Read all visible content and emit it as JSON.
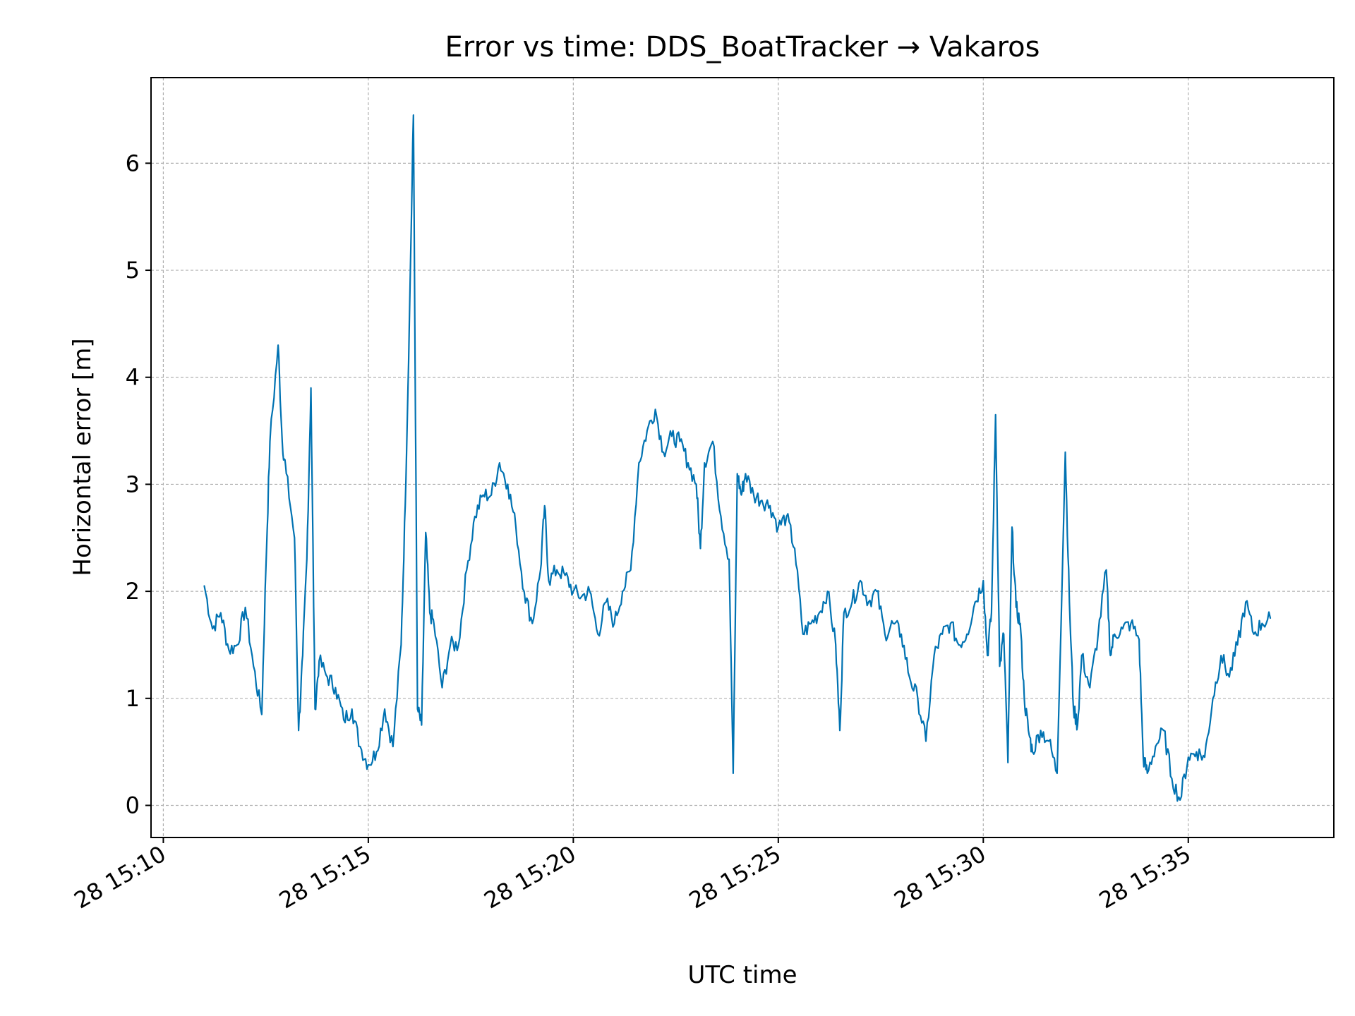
{
  "chart_data": {
    "type": "line",
    "title": "Error vs time: DDS_BoatTracker → Vakaros",
    "xlabel": "UTC time",
    "ylabel": "Horizontal error [m]",
    "grid": true,
    "xlim": [
      "28 15:09:42",
      "28 15:38:33"
    ],
    "ylim": [
      -0.3,
      6.8
    ],
    "x_ticks": [
      "28 15:10",
      "28 15:15",
      "28 15:20",
      "28 15:25",
      "28 15:30",
      "28 15:35"
    ],
    "y_ticks": [
      "0",
      "1",
      "2",
      "3",
      "4",
      "5",
      "6"
    ],
    "series": [
      {
        "color": "#0072b2",
        "x": [
          "28 15:11:00",
          "28 15:11:12",
          "28 15:11:24",
          "28 15:11:36",
          "28 15:11:48",
          "28 15:12:00",
          "28 15:12:12",
          "28 15:12:24",
          "28 15:12:30",
          "28 15:12:36",
          "28 15:12:48",
          "28 15:12:54",
          "28 15:13:00",
          "28 15:13:12",
          "28 15:13:18",
          "28 15:13:24",
          "28 15:13:30",
          "28 15:13:36",
          "28 15:13:42",
          "28 15:13:48",
          "28 15:14:00",
          "28 15:14:12",
          "28 15:14:24",
          "28 15:14:36",
          "28 15:14:48",
          "28 15:15:00",
          "28 15:15:12",
          "28 15:15:24",
          "28 15:15:36",
          "28 15:15:48",
          "28 15:15:54",
          "28 15:16:00",
          "28 15:16:06",
          "28 15:16:12",
          "28 15:16:18",
          "28 15:16:24",
          "28 15:16:30",
          "28 15:16:36",
          "28 15:16:48",
          "28 15:17:00",
          "28 15:17:12",
          "28 15:17:24",
          "28 15:17:36",
          "28 15:17:48",
          "28 15:18:00",
          "28 15:18:12",
          "28 15:18:24",
          "28 15:18:36",
          "28 15:18:48",
          "28 15:19:00",
          "28 15:19:12",
          "28 15:19:18",
          "28 15:19:24",
          "28 15:19:36",
          "28 15:19:48",
          "28 15:20:00",
          "28 15:20:12",
          "28 15:20:24",
          "28 15:20:36",
          "28 15:20:48",
          "28 15:21:00",
          "28 15:21:12",
          "28 15:21:24",
          "28 15:21:36",
          "28 15:21:48",
          "28 15:22:00",
          "28 15:22:12",
          "28 15:22:24",
          "28 15:22:36",
          "28 15:22:48",
          "28 15:23:00",
          "28 15:23:06",
          "28 15:23:12",
          "28 15:23:24",
          "28 15:23:36",
          "28 15:23:48",
          "28 15:23:54",
          "28 15:24:00",
          "28 15:24:06",
          "28 15:24:12",
          "28 15:24:24",
          "28 15:24:36",
          "28 15:24:48",
          "28 15:25:00",
          "28 15:25:12",
          "28 15:25:24",
          "28 15:25:36",
          "28 15:25:48",
          "28 15:26:00",
          "28 15:26:12",
          "28 15:26:24",
          "28 15:26:30",
          "28 15:26:36",
          "28 15:26:48",
          "28 15:27:00",
          "28 15:27:12",
          "28 15:27:24",
          "28 15:27:36",
          "28 15:27:48",
          "28 15:28:00",
          "28 15:28:12",
          "28 15:28:24",
          "28 15:28:36",
          "28 15:28:48",
          "28 15:29:00",
          "28 15:29:12",
          "28 15:29:24",
          "28 15:29:36",
          "28 15:29:48",
          "28 15:30:00",
          "28 15:30:06",
          "28 15:30:12",
          "28 15:30:18",
          "28 15:30:24",
          "28 15:30:30",
          "28 15:30:36",
          "28 15:30:42",
          "28 15:30:48",
          "28 15:30:54",
          "28 15:31:00",
          "28 15:31:06",
          "28 15:31:12",
          "28 15:31:24",
          "28 15:31:36",
          "28 15:31:48",
          "28 15:32:00",
          "28 15:32:06",
          "28 15:32:12",
          "28 15:32:18",
          "28 15:32:24",
          "28 15:32:36",
          "28 15:32:48",
          "28 15:33:00",
          "28 15:33:06",
          "28 15:33:12",
          "28 15:33:24",
          "28 15:33:36",
          "28 15:33:48",
          "28 15:33:54",
          "28 15:34:00",
          "28 15:34:12",
          "28 15:34:24",
          "28 15:34:36",
          "28 15:34:48",
          "28 15:35:00",
          "28 15:35:12",
          "28 15:35:24",
          "28 15:35:36",
          "28 15:35:48",
          "28 15:36:00",
          "28 15:36:12",
          "28 15:36:24",
          "28 15:36:36",
          "28 15:36:48",
          "28 15:37:00"
        ],
        "values": [
          2.05,
          1.65,
          1.8,
          1.45,
          1.5,
          1.85,
          1.3,
          0.85,
          2.2,
          3.4,
          4.3,
          3.4,
          3.1,
          2.5,
          0.7,
          1.4,
          2.3,
          3.9,
          0.9,
          1.35,
          1.2,
          1.1,
          0.8,
          0.9,
          0.55,
          0.38,
          0.5,
          0.9,
          0.55,
          1.5,
          2.8,
          4.5,
          6.45,
          0.9,
          0.75,
          2.55,
          1.8,
          1.7,
          1.1,
          1.5,
          1.5,
          2.2,
          2.7,
          2.9,
          2.9,
          3.2,
          3.0,
          2.6,
          2.0,
          1.7,
          2.2,
          2.8,
          2.1,
          2.2,
          2.15,
          2.0,
          1.95,
          2.0,
          1.6,
          1.9,
          1.7,
          2.0,
          2.2,
          3.2,
          3.5,
          3.7,
          3.3,
          3.45,
          3.4,
          3.2,
          3.0,
          2.4,
          3.2,
          3.4,
          2.7,
          2.3,
          0.3,
          3.1,
          2.9,
          3.1,
          2.9,
          2.85,
          2.8,
          2.6,
          2.7,
          2.4,
          1.6,
          1.7,
          1.8,
          2.0,
          1.5,
          0.7,
          1.8,
          1.9,
          2.1,
          1.9,
          2.0,
          1.6,
          1.7,
          1.6,
          1.2,
          1.0,
          0.6,
          1.4,
          1.6,
          1.7,
          1.5,
          1.6,
          1.9,
          2.1,
          1.4,
          1.8,
          3.65,
          1.3,
          1.6,
          0.4,
          2.6,
          1.85,
          1.7,
          1.0,
          0.7,
          0.5,
          0.7,
          0.6,
          0.3,
          3.3,
          1.9,
          0.9,
          0.75,
          1.4,
          1.1,
          1.6,
          2.2,
          1.4,
          1.6,
          1.65,
          1.7,
          1.55,
          0.45,
          0.3,
          0.55,
          0.7,
          0.25,
          0.05,
          0.45,
          0.5,
          0.45,
          1.0,
          1.4,
          1.2,
          1.5,
          1.9,
          1.6,
          1.7,
          1.75
        ]
      }
    ]
  }
}
